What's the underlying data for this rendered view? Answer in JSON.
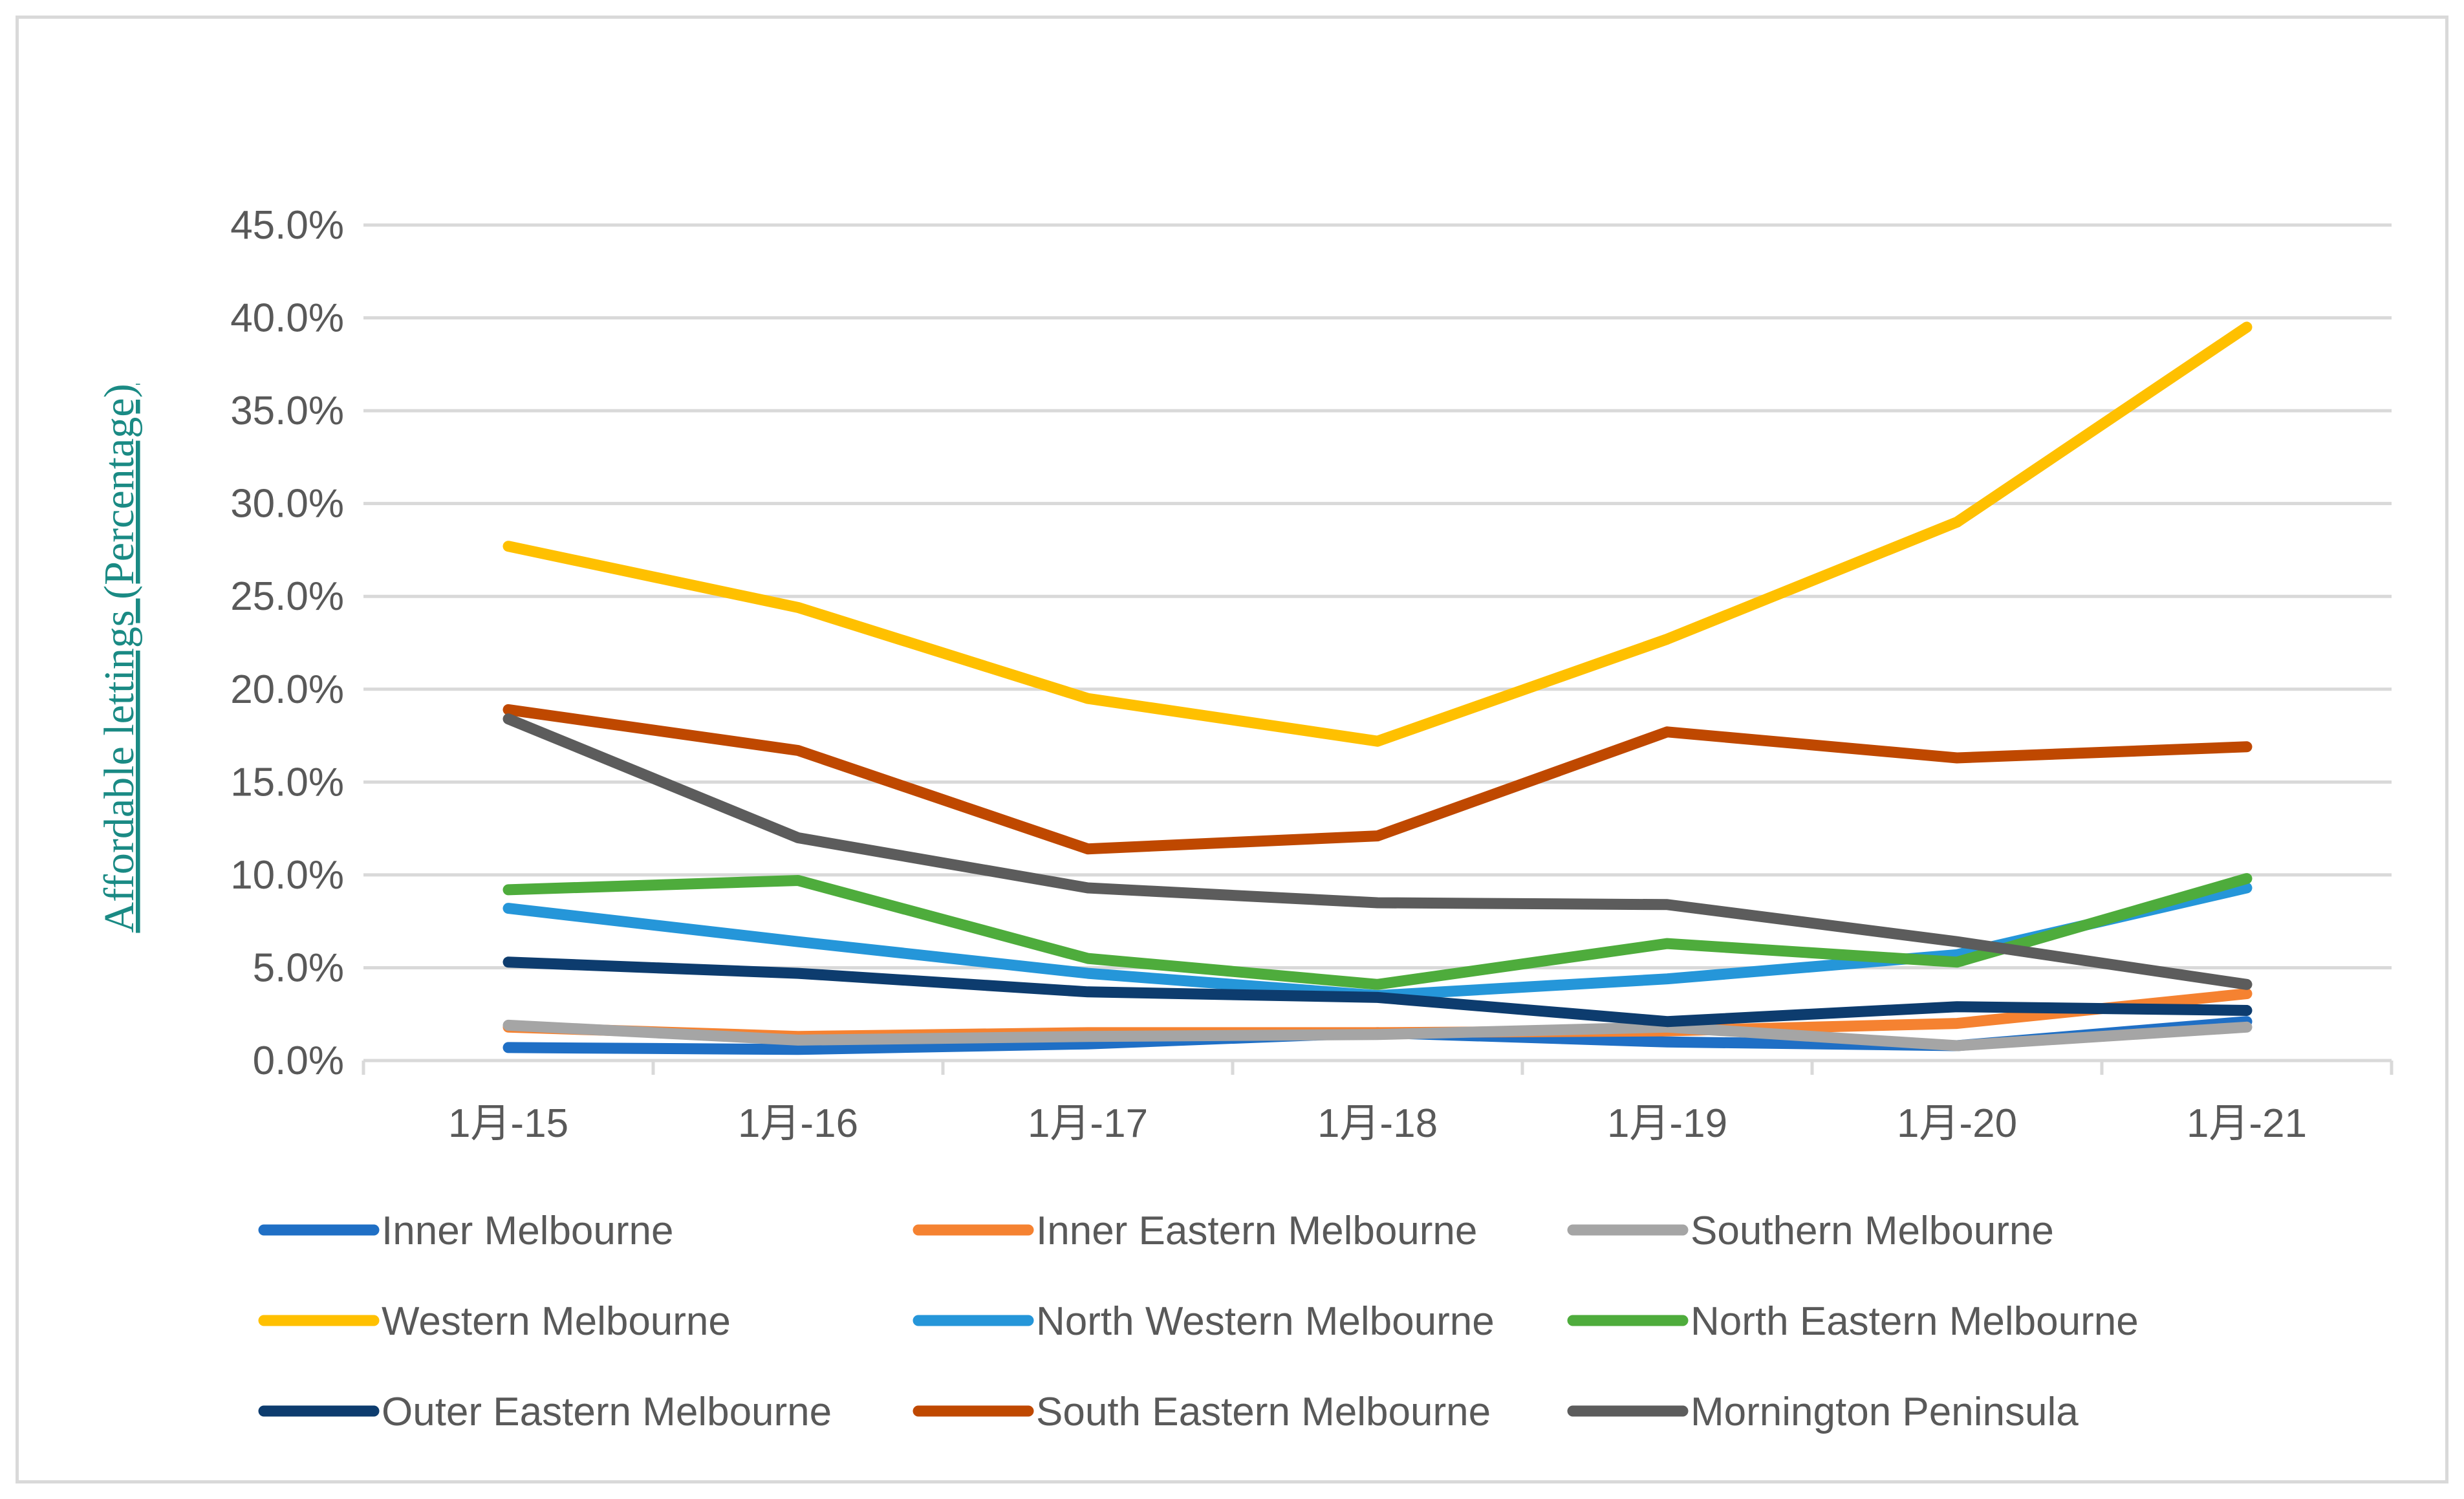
{
  "chart_data": {
    "type": "line",
    "title": "",
    "xlabel": "",
    "ylabel": "Affordable lettings (Percentage)",
    "ylim": [
      0,
      45
    ],
    "ytick_labels": [
      "0.0%",
      "5.0%",
      "10.0%",
      "15.0%",
      "20.0%",
      "25.0%",
      "30.0%",
      "35.0%",
      "40.0%",
      "45.0%"
    ],
    "categories": [
      "1月-15",
      "1月-16",
      "1月-17",
      "1月-18",
      "1月-19",
      "1月-20",
      "1月-21"
    ],
    "grid": true,
    "legend_position": "bottom",
    "series": [
      {
        "name": "Inner Melbourne",
        "color": "#1f6fc5",
        "values": [
          0.7,
          0.6,
          0.9,
          1.5,
          1.0,
          0.8,
          2.1
        ]
      },
      {
        "name": "Inner Eastern Melbourne",
        "color": "#f58231",
        "values": [
          1.8,
          1.3,
          1.5,
          1.5,
          1.6,
          2.0,
          3.6
        ]
      },
      {
        "name": "Southern Melbourne",
        "color": "#a5a5a5",
        "values": [
          1.9,
          1.1,
          1.3,
          1.4,
          1.8,
          0.8,
          1.8
        ]
      },
      {
        "name": "Western Melbourne",
        "color": "#ffc000",
        "values": [
          27.7,
          24.4,
          19.5,
          17.2,
          22.7,
          29.0,
          39.5
        ]
      },
      {
        "name": "North Western Melbourne",
        "color": "#2596d9",
        "values": [
          8.2,
          6.4,
          4.7,
          3.5,
          4.4,
          5.7,
          9.3
        ]
      },
      {
        "name": "North Eastern Melbourne",
        "color": "#4eac3c",
        "values": [
          9.2,
          9.7,
          5.5,
          4.1,
          6.3,
          5.3,
          9.8
        ]
      },
      {
        "name": "Outer Eastern Melbourne",
        "color": "#0d3c6e",
        "values": [
          5.3,
          4.7,
          3.7,
          3.4,
          2.1,
          2.9,
          2.7
        ]
      },
      {
        "name": "South Eastern Melbourne",
        "color": "#bf4800",
        "values": [
          18.9,
          16.7,
          11.4,
          12.1,
          17.7,
          16.3,
          16.9
        ]
      },
      {
        "name": "Mornington Peninsula",
        "color": "#5c5c5c",
        "values": [
          18.4,
          12.0,
          9.3,
          8.5,
          8.4,
          6.4,
          4.1
        ]
      }
    ]
  }
}
